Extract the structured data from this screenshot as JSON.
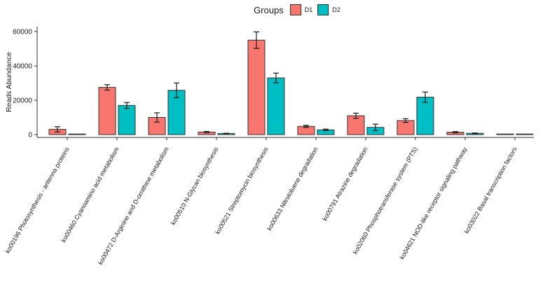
{
  "figure": {
    "background": "#ffffff"
  },
  "chart_data": {
    "type": "bar",
    "title": "",
    "legend_title": "Groups",
    "legend_position": "top-center",
    "xlabel": "",
    "ylabel": "Reads Abundance",
    "ylim": [
      0,
      60000
    ],
    "yticks": [
      0,
      20000,
      40000,
      60000
    ],
    "grid": false,
    "x_label_angle_deg": -60,
    "bar_border_color": "#333333",
    "error_bar_color": "#1a1a1a",
    "axis_color": "#333333",
    "categories": [
      "ko00196 Photosynthesis - antenna proteins",
      "ko00460 Cyanoamino acid metabolism",
      "ko00472 D-Arginine and D-ornithine metabolism",
      "ko00510 N-Glycan biosynthesis",
      "ko00521 Streptomycin biosynthesis",
      "ko00633 Nitrotoluene degradation",
      "ko00791 Atrazine degradation",
      "ko02060 Phosphotransferase system (PTS)",
      "ko04621 NOD-like receptor signaling pathway",
      "ko03022 Basal transcription factors"
    ],
    "series": [
      {
        "name": "D1",
        "color": "#F8766D",
        "values": [
          3100,
          27500,
          10000,
          1500,
          55000,
          4800,
          11000,
          8200,
          1400,
          120
        ],
        "errors": [
          1500,
          1600,
          2700,
          350,
          4800,
          600,
          1500,
          1100,
          350,
          0
        ]
      },
      {
        "name": "D2",
        "color": "#00BFC4",
        "values": [
          350,
          17000,
          25800,
          650,
          33000,
          2800,
          4200,
          21800,
          750,
          120
        ],
        "errors": [
          0,
          1700,
          4300,
          150,
          2800,
          400,
          1900,
          3000,
          200,
          0
        ]
      }
    ]
  }
}
